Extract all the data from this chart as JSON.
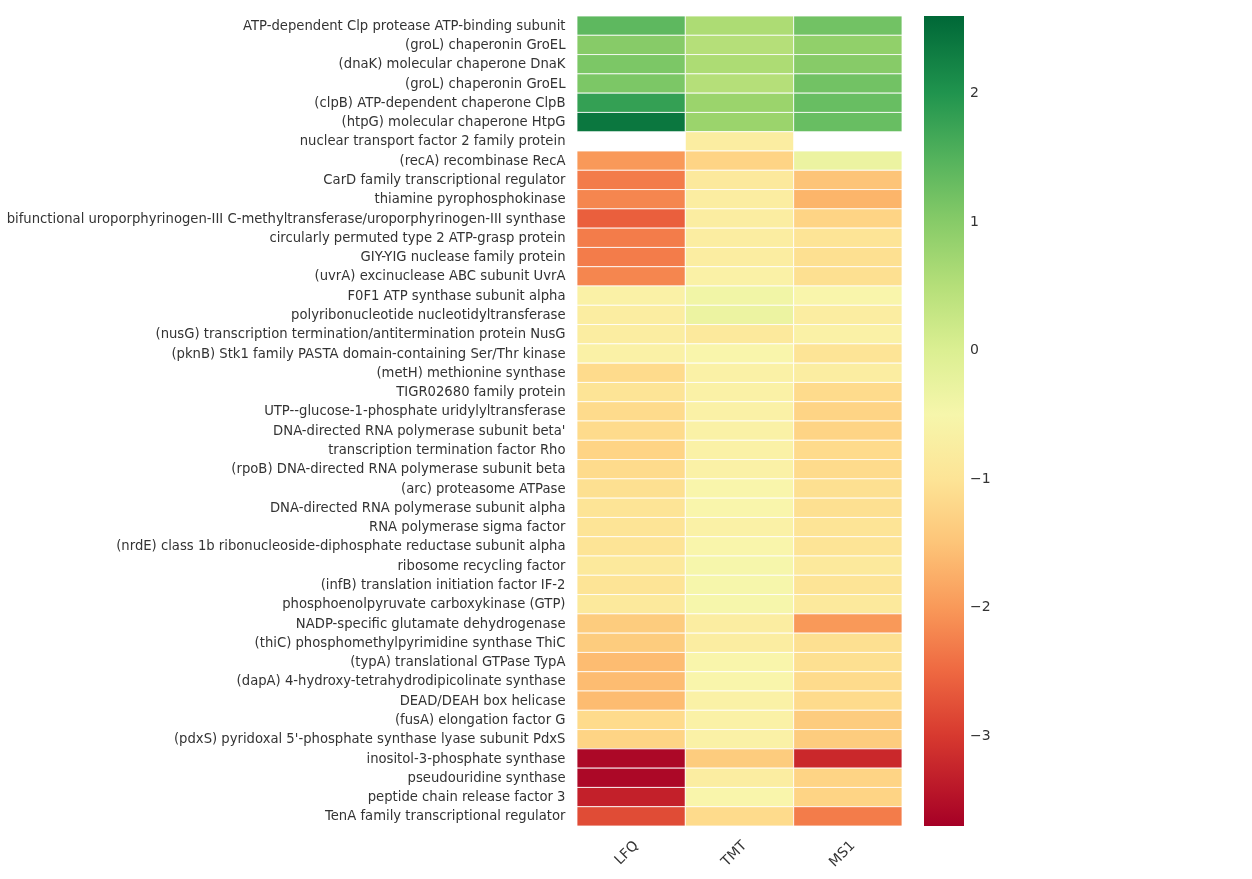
{
  "chart_data": {
    "type": "heatmap",
    "categories": [
      "LFQ",
      "TMT",
      "MS1"
    ],
    "y_categories": [
      "ATP-dependent Clp protease ATP-binding subunit",
      "(groL) chaperonin GroEL",
      "(dnaK) molecular chaperone DnaK",
      "(groL) chaperonin GroEL",
      "(clpB) ATP-dependent chaperone ClpB",
      "(htpG) molecular chaperone HtpG",
      "nuclear transport factor 2 family protein",
      "(recA) recombinase RecA",
      "CarD family transcriptional regulator",
      "thiamine pyrophosphokinase",
      "bifunctional uroporphyrinogen-III C-methyltransferase/uroporphyrinogen-III synthase",
      "circularly permuted type 2 ATP-grasp protein",
      "GIY-YIG nuclease family protein",
      "(uvrA) excinuclease ABC subunit UvrA",
      "F0F1 ATP synthase subunit alpha",
      "polyribonucleotide nucleotidyltransferase",
      "(nusG) transcription termination/antitermination protein NusG",
      "(pknB) Stk1 family PASTA domain-containing Ser/Thr kinase",
      "(metH) methionine synthase",
      "TIGR02680 family protein",
      "UTP--glucose-1-phosphate uridylyltransferase",
      "DNA-directed RNA polymerase subunit beta'",
      "transcription termination factor Rho",
      "(rpoB) DNA-directed RNA polymerase subunit beta",
      "(arc) proteasome ATPase",
      "DNA-directed RNA polymerase subunit alpha",
      "RNA polymerase sigma factor",
      "(nrdE) class 1b ribonucleoside-diphosphate reductase subunit alpha",
      "ribosome recycling factor",
      "(infB) translation initiation factor IF-2",
      "phosphoenolpyruvate carboxykinase (GTP)",
      "NADP-specific glutamate dehydrogenase",
      "(thiC) phosphomethylpyrimidine synthase ThiC",
      "(typA) translational GTPase TypA",
      "(dapA) 4-hydroxy-tetrahydrodipicolinate synthase",
      "DEAD/DEAH box helicase",
      "(fusA) elongation factor G",
      "(pdxS) pyridoxal 5'-phosphate synthase lyase subunit PdxS",
      "inositol-3-phosphate synthase",
      "pseudouridine synthase",
      "peptide chain release factor 3",
      "TenA family transcriptional regulator"
    ],
    "cells": [
      [
        1.4,
        0.6,
        1.2
      ],
      [
        1.0,
        0.5,
        0.9
      ],
      [
        1.1,
        0.6,
        1.0
      ],
      [
        1.1,
        0.5,
        1.2
      ],
      [
        1.8,
        0.8,
        1.3
      ],
      [
        2.4,
        0.8,
        1.3
      ],
      [
        null,
        -0.8,
        null
      ],
      [
        -2.0,
        -1.3,
        -0.3
      ],
      [
        -2.3,
        -0.9,
        -1.5
      ],
      [
        -2.2,
        -0.8,
        -1.7
      ],
      [
        -2.6,
        -0.8,
        -1.3
      ],
      [
        -2.3,
        -0.8,
        -1.0
      ],
      [
        -2.3,
        -0.8,
        -1.1
      ],
      [
        -2.2,
        -0.7,
        -1.1
      ],
      [
        -0.7,
        -0.4,
        -0.6
      ],
      [
        -0.8,
        -0.3,
        -0.8
      ],
      [
        -0.8,
        -0.9,
        -0.7
      ],
      [
        -0.7,
        -0.6,
        -1.0
      ],
      [
        -1.2,
        -0.7,
        -0.8
      ],
      [
        -1.0,
        -0.7,
        -1.2
      ],
      [
        -1.2,
        -0.7,
        -1.3
      ],
      [
        -1.2,
        -0.7,
        -1.3
      ],
      [
        -1.3,
        -0.7,
        -1.2
      ],
      [
        -1.2,
        -0.7,
        -1.2
      ],
      [
        -1.1,
        -0.6,
        -1.1
      ],
      [
        -1.0,
        -0.6,
        -1.1
      ],
      [
        -1.0,
        -0.7,
        -1.0
      ],
      [
        -1.0,
        -0.6,
        -1.0
      ],
      [
        -0.9,
        -0.5,
        -0.9
      ],
      [
        -1.0,
        -0.5,
        -1.0
      ],
      [
        -0.9,
        -0.5,
        -0.9
      ],
      [
        -1.4,
        -0.8,
        -2.0
      ],
      [
        -1.4,
        -0.8,
        -1.1
      ],
      [
        -1.6,
        -0.6,
        -1.1
      ],
      [
        -1.6,
        -0.6,
        -1.2
      ],
      [
        -1.6,
        -0.7,
        -1.2
      ],
      [
        -1.2,
        -0.7,
        -1.4
      ],
      [
        -1.3,
        -0.7,
        -1.4
      ],
      [
        -3.6,
        -1.4,
        -3.2
      ],
      [
        -3.6,
        -0.8,
        -1.3
      ],
      [
        -3.3,
        -0.6,
        -1.3
      ],
      [
        -2.8,
        -1.2,
        -2.3
      ]
    ],
    "clim": [
      -3.7,
      2.6
    ],
    "cticks": [
      -3,
      -2,
      -1,
      0,
      1,
      2
    ]
  }
}
